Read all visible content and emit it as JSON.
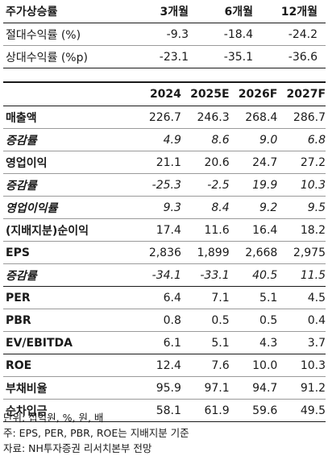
{
  "performance": {
    "header": {
      "label": "주가상승률",
      "cols": [
        "3개월",
        "6개월",
        "12개월"
      ]
    },
    "rows": [
      {
        "label": "절대수익률 (%)",
        "values": [
          "-9.3",
          "-18.4",
          "-24.2"
        ]
      },
      {
        "label": "상대수익률 (%p)",
        "values": [
          "-23.1",
          "-35.1",
          "-36.6"
        ]
      }
    ]
  },
  "financials": {
    "years": [
      "2024",
      "2025E",
      "2026F",
      "2027F"
    ],
    "rows": [
      {
        "label": "매출액",
        "values": [
          "226.7",
          "246.3",
          "268.4",
          "286.7"
        ]
      },
      {
        "label": "증감률",
        "values": [
          "4.9",
          "8.6",
          "9.0",
          "6.8"
        ]
      },
      {
        "label": "영업이익",
        "values": [
          "21.1",
          "20.6",
          "24.7",
          "27.2"
        ]
      },
      {
        "label": "증감률",
        "values": [
          "-25.3",
          "-2.5",
          "19.9",
          "10.3"
        ]
      },
      {
        "label": "영업이익률",
        "values": [
          "9.3",
          "8.4",
          "9.2",
          "9.5"
        ]
      },
      {
        "label": "(지배지분)순이익",
        "values": [
          "17.4",
          "11.6",
          "16.4",
          "18.2"
        ]
      },
      {
        "label": "EPS",
        "values": [
          "2,836",
          "1,899",
          "2,668",
          "2,975"
        ]
      },
      {
        "label": "증감률",
        "values": [
          "-34.1",
          "-33.1",
          "40.5",
          "11.5"
        ]
      },
      {
        "label": "PER",
        "values": [
          "6.4",
          "7.1",
          "5.1",
          "4.5"
        ]
      },
      {
        "label": "PBR",
        "values": [
          "0.8",
          "0.5",
          "0.5",
          "0.4"
        ]
      },
      {
        "label": "EV/EBITDA",
        "values": [
          "6.1",
          "5.1",
          "4.3",
          "3.7"
        ]
      },
      {
        "label": "ROE",
        "values": [
          "12.4",
          "7.6",
          "10.0",
          "10.3"
        ]
      },
      {
        "label": "부채비율",
        "values": [
          "95.9",
          "97.1",
          "94.7",
          "91.2"
        ]
      },
      {
        "label": "순차입금",
        "values": [
          "58.1",
          "61.9",
          "59.6",
          "49.5"
        ]
      }
    ]
  },
  "notes": [
    "단위: 십억원, %, 원, 배",
    "주: EPS, PER, PBR, ROE는 지배지분 기준",
    "자료: NH투자증권 리서치본부 전망"
  ]
}
